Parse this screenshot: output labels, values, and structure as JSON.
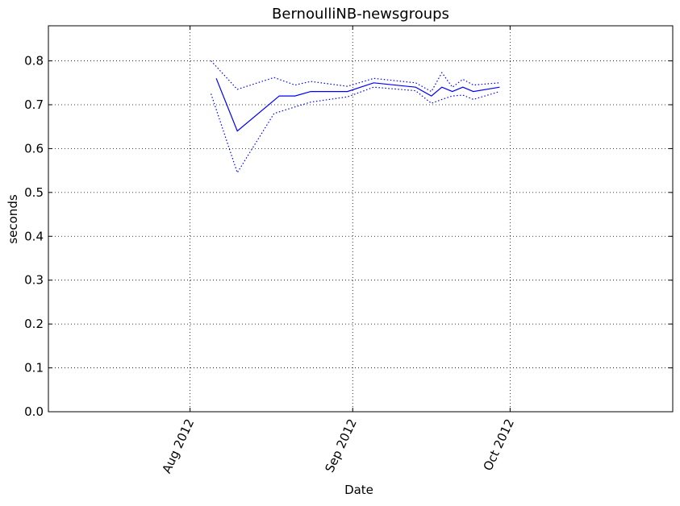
{
  "chart_data": {
    "type": "line",
    "title": "BernoulliNB-newsgroups",
    "xlabel": "Date",
    "ylabel": "seconds",
    "xlim": [
      "2012-07-05",
      "2012-11-01"
    ],
    "ylim": [
      0.0,
      0.88
    ],
    "grid": true,
    "y_ticks": [
      0.0,
      0.1,
      0.2,
      0.3,
      0.4,
      0.5,
      0.6,
      0.7,
      0.8
    ],
    "y_tick_labels": [
      "0.0",
      "0.1",
      "0.2",
      "0.3",
      "0.4",
      "0.5",
      "0.6",
      "0.7",
      "0.8"
    ],
    "x_ticks": [
      "2012-08-01",
      "2012-09-01",
      "2012-10-01"
    ],
    "x_tick_labels": [
      "Aug 2012",
      "Sep 2012",
      "Oct 2012"
    ],
    "series": [
      {
        "style": "solid",
        "color": "#0000ff",
        "x": [
          "2012-08-06",
          "2012-08-10",
          "2012-08-18",
          "2012-08-21",
          "2012-08-24",
          "2012-08-31",
          "2012-09-05",
          "2012-09-13",
          "2012-09-16",
          "2012-09-18",
          "2012-09-20",
          "2012-09-22",
          "2012-09-24",
          "2012-09-29"
        ],
        "values": [
          0.76,
          0.64,
          0.72,
          0.72,
          0.73,
          0.73,
          0.75,
          0.74,
          0.72,
          0.74,
          0.73,
          0.74,
          0.73,
          0.74
        ]
      },
      {
        "style": "dotted",
        "color": "#0000ff",
        "x": [
          "2012-08-05",
          "2012-08-10",
          "2012-08-17",
          "2012-08-21",
          "2012-08-24",
          "2012-08-31",
          "2012-09-05",
          "2012-09-13",
          "2012-09-16",
          "2012-09-18",
          "2012-09-20",
          "2012-09-22",
          "2012-09-24",
          "2012-09-29"
        ],
        "values": [
          0.8,
          0.735,
          0.762,
          0.745,
          0.753,
          0.742,
          0.76,
          0.75,
          0.73,
          0.773,
          0.74,
          0.758,
          0.745,
          0.75
        ]
      },
      {
        "style": "dotted",
        "color": "#0000ff",
        "x": [
          "2012-08-05",
          "2012-08-10",
          "2012-08-17",
          "2012-08-21",
          "2012-08-24",
          "2012-08-31",
          "2012-09-05",
          "2012-09-13",
          "2012-09-16",
          "2012-09-18",
          "2012-09-20",
          "2012-09-22",
          "2012-09-24",
          "2012-09-29"
        ],
        "values": [
          0.725,
          0.545,
          0.68,
          0.695,
          0.706,
          0.718,
          0.74,
          0.732,
          0.703,
          0.712,
          0.72,
          0.722,
          0.712,
          0.73
        ]
      }
    ]
  }
}
